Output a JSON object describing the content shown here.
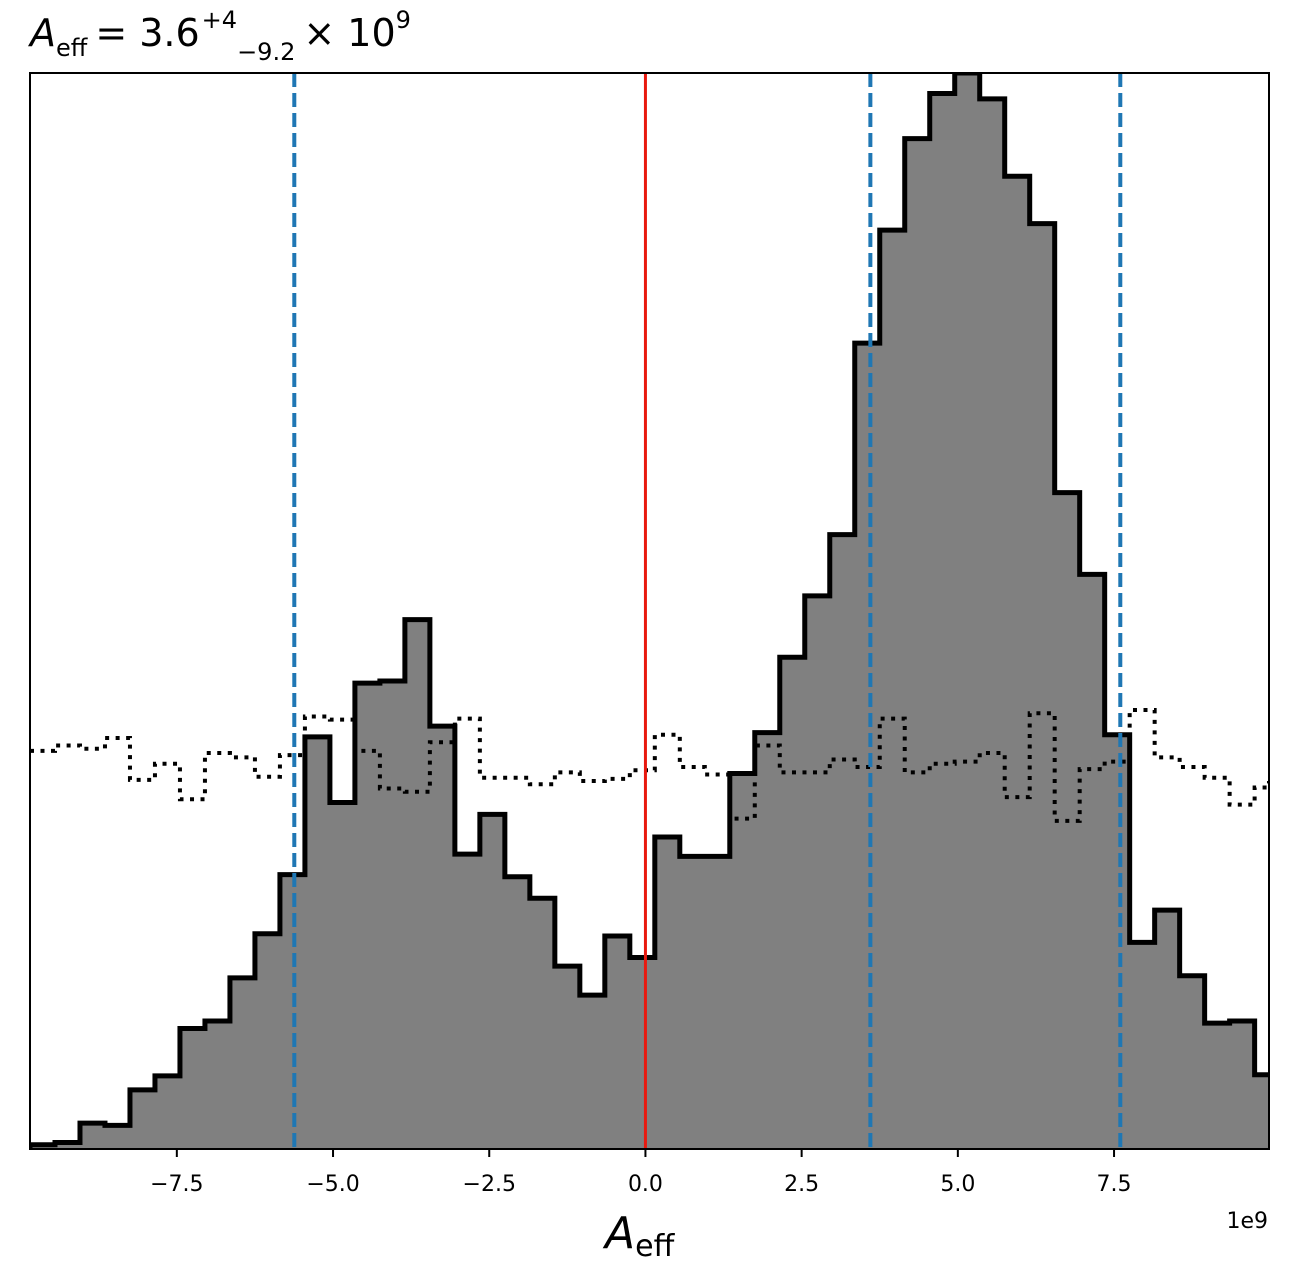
{
  "chart_data": {
    "type": "histogram",
    "title": {
      "symbol": "A",
      "subscript": "eff",
      "equals": "= 3.6",
      "sup": "+4",
      "sub": "−9.2",
      "times": "× 10",
      "exp": "9"
    },
    "xlabel": {
      "symbol": "A",
      "subscript": "eff"
    },
    "x_offset_label": "1e9",
    "xlim": [
      -9.85,
      9.98
    ],
    "ylim": [
      0,
      1.0
    ],
    "x_tick_values": [
      -7.5,
      -5.0,
      -2.5,
      0.0,
      2.5,
      5.0,
      7.5
    ],
    "x_tick_labels": [
      "−7.5",
      "−5.0",
      "−2.5",
      "0.0",
      "2.5",
      "5.0",
      "7.5"
    ],
    "bin_edges": [
      -9.85,
      -9.45,
      -9.05,
      -8.65,
      -8.25,
      -7.85,
      -7.45,
      -7.05,
      -6.65,
      -6.25,
      -5.85,
      -5.45,
      -5.05,
      -4.65,
      -4.25,
      -3.85,
      -3.45,
      -3.05,
      -2.65,
      -2.25,
      -1.85,
      -1.45,
      -1.05,
      -0.65,
      -0.25,
      0.15,
      0.55,
      0.95,
      1.35,
      1.75,
      2.15,
      2.55,
      2.95,
      3.35,
      3.75,
      4.15,
      4.55,
      4.95,
      5.35,
      5.75,
      6.15,
      6.55,
      6.95,
      7.35,
      7.75,
      8.15,
      8.55,
      8.95,
      9.35,
      9.75,
      9.98
    ],
    "series": [
      {
        "style": "filled-step",
        "fill": "#808080",
        "stroke": "#000000",
        "counts": [
          0.004,
          0.006,
          0.024,
          0.022,
          0.055,
          0.068,
          0.112,
          0.119,
          0.159,
          0.2,
          0.255,
          0.383,
          0.322,
          0.433,
          0.435,
          0.492,
          0.393,
          0.274,
          0.311,
          0.253,
          0.233,
          0.17,
          0.143,
          0.198,
          0.178,
          0.29,
          0.272,
          0.272,
          0.349,
          0.387,
          0.457,
          0.514,
          0.571,
          0.749,
          0.854,
          0.939,
          0.981,
          1.0,
          0.976,
          0.904,
          0.86,
          0.61,
          0.534,
          0.385,
          0.192,
          0.222,
          0.161,
          0.117,
          0.119,
          0.069,
          0.069
        ]
      },
      {
        "style": "dotted-step",
        "stroke": "#000000",
        "counts": [
          0.37,
          0.375,
          0.372,
          0.382,
          0.343,
          0.358,
          0.325,
          0.368,
          0.364,
          0.346,
          0.366,
          0.402,
          0.399,
          0.37,
          0.335,
          0.332,
          0.378,
          0.4,
          0.345,
          0.345,
          0.339,
          0.35,
          0.342,
          0.344,
          0.352,
          0.385,
          0.355,
          0.348,
          0.307,
          0.375,
          0.35,
          0.35,
          0.362,
          0.355,
          0.4,
          0.35,
          0.358,
          0.36,
          0.368,
          0.327,
          0.405,
          0.305,
          0.353,
          0.36,
          0.408,
          0.364,
          0.355,
          0.345,
          0.32,
          0.336,
          0.342
        ]
      }
    ],
    "vlines": [
      {
        "x": -5.62,
        "color": "#1f77b4",
        "style": "dashed"
      },
      {
        "x": 0.0,
        "color": "#e8190f",
        "style": "solid"
      },
      {
        "x": 3.6,
        "color": "#1f77b4",
        "style": "dashed"
      },
      {
        "x": 7.6,
        "color": "#1f77b4",
        "style": "dashed"
      }
    ],
    "grid": false,
    "legend": "none"
  }
}
